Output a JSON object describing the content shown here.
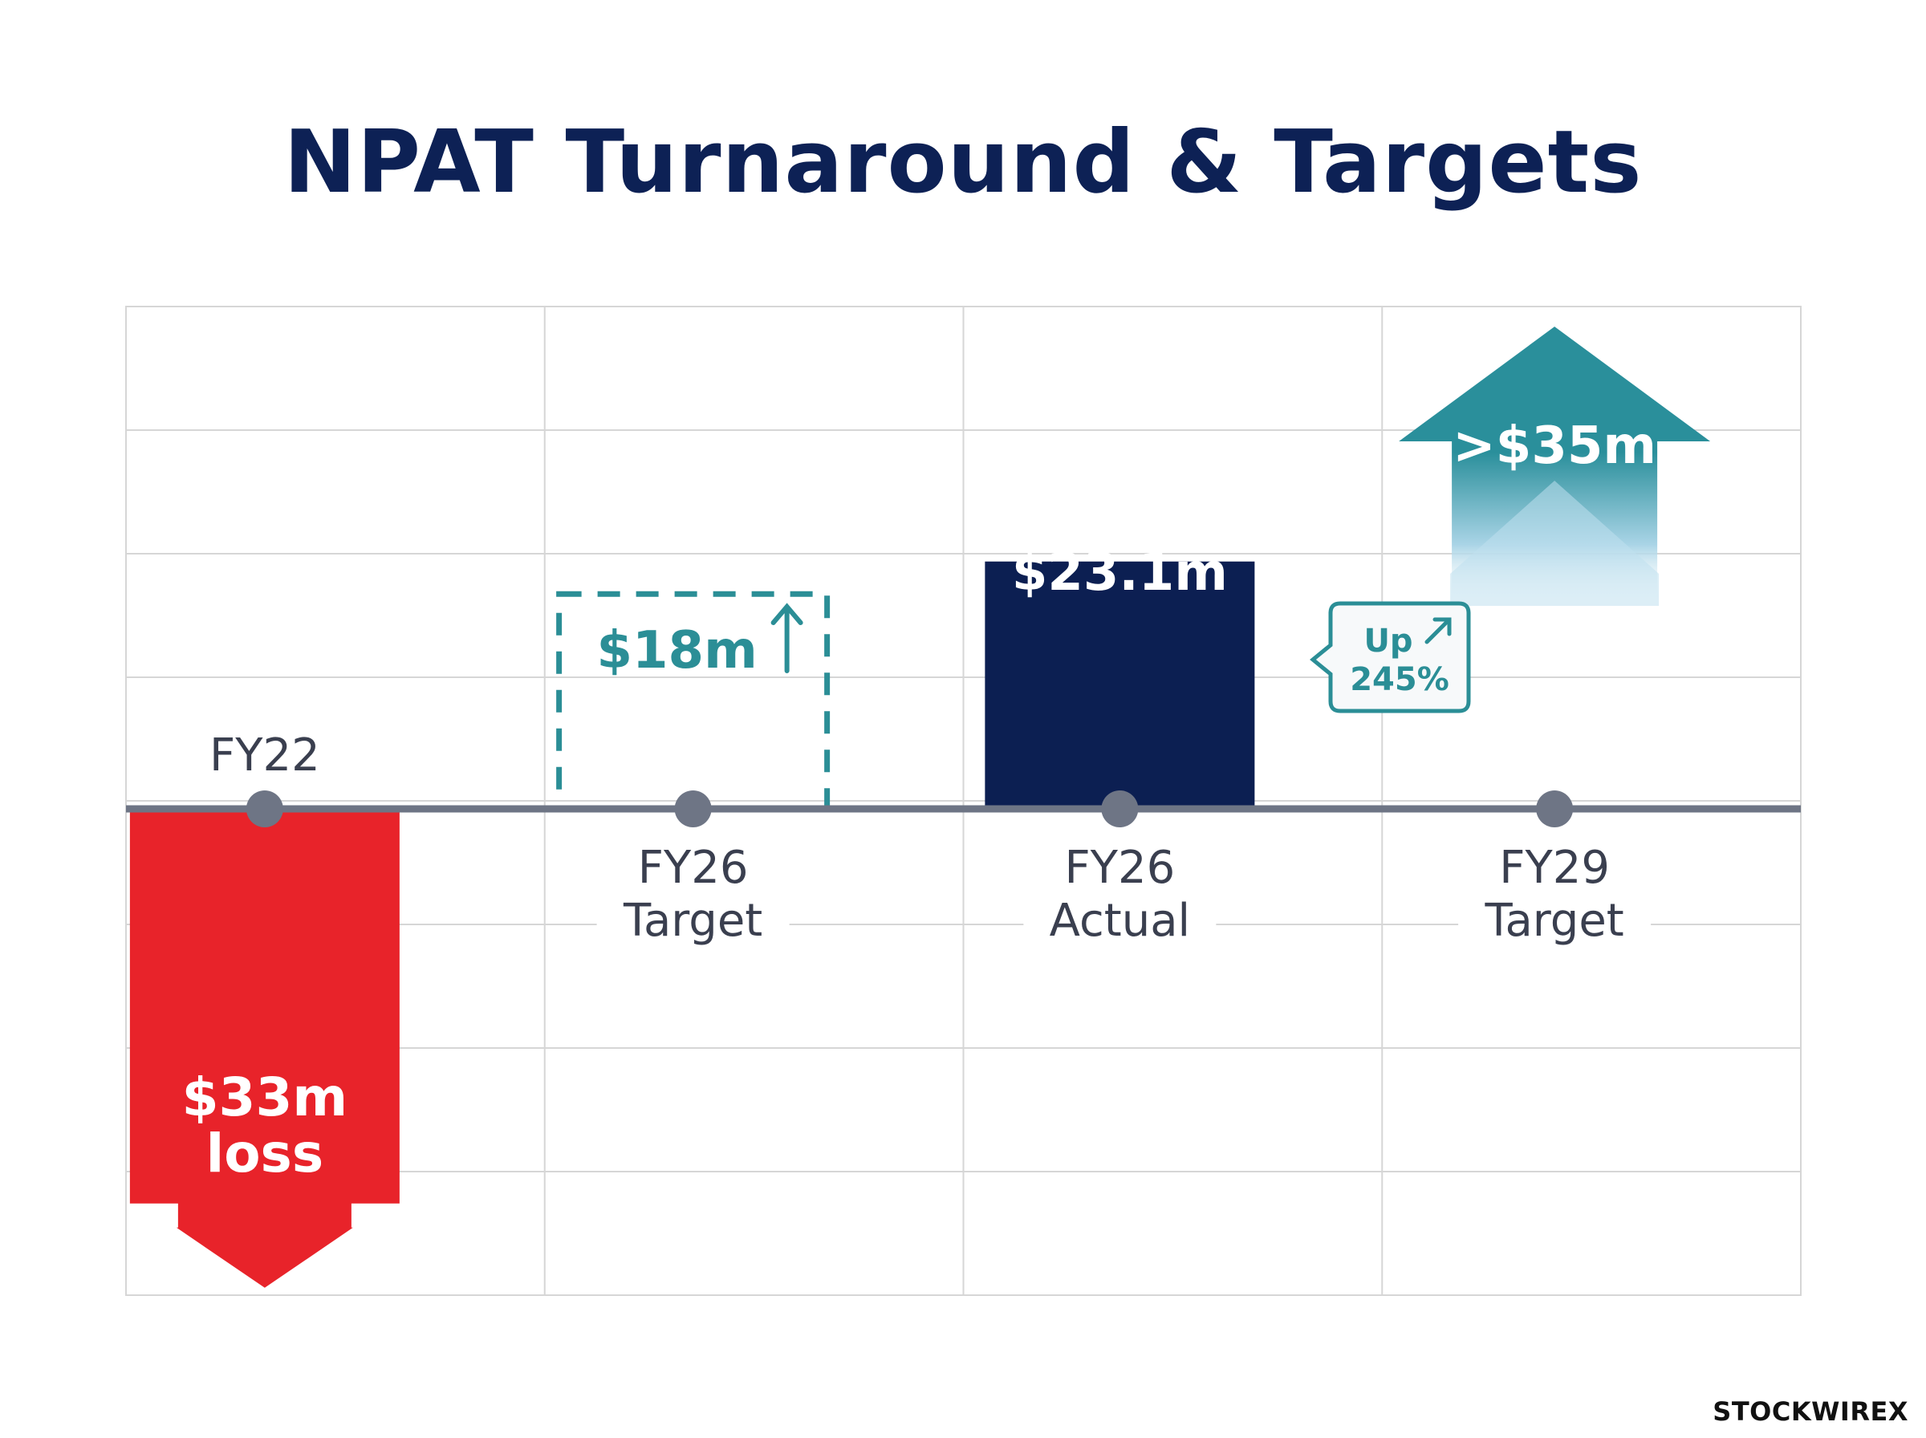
{
  "title": "NPAT Turnaround & Targets",
  "brand": {
    "name": "STOCKWIRE",
    "mark": "X"
  },
  "colors": {
    "title": "#0d2155",
    "loss": "#e8232a",
    "target_dashed": "#2b8e96",
    "actual": "#0c1f52",
    "future_arrow": "#2a8f9b",
    "axis": "#6e7585",
    "grid": "#d6d6d6",
    "label": "#3a3f4f"
  },
  "chart_data": {
    "type": "bar",
    "title": "NPAT Turnaround & Targets",
    "xlabel": "",
    "ylabel": "",
    "grid": true,
    "categories": [
      "FY22",
      "FY26\nTarget",
      "FY26\nActual",
      "FY29\nTarget"
    ],
    "category_lines": [
      [
        "FY22"
      ],
      [
        "FY26",
        "Target"
      ],
      [
        "FY26",
        "Actual"
      ],
      [
        "FY29",
        "Target"
      ]
    ],
    "values": [
      -33,
      18,
      23.1,
      35
    ],
    "value_labels": [
      [
        "$33m",
        "loss"
      ],
      [
        "$18m"
      ],
      [
        "$23.1m"
      ],
      [
        ">$35m"
      ]
    ],
    "styles": [
      "down-arrow",
      "dashed-outline",
      "solid",
      "up-arrow"
    ],
    "annotation": {
      "near": "FY26\nActual",
      "lines": [
        "Up",
        "245%"
      ],
      "icon": "trend-up-arrow-icon"
    }
  }
}
